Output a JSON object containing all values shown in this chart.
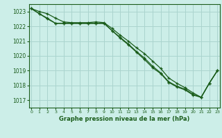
{
  "title": "Graphe pression niveau de la mer (hPa)",
  "bg_color": "#cceee8",
  "grid_color": "#aad4ce",
  "line_color": "#1a5c1a",
  "ylim": [
    1016.5,
    1023.5
  ],
  "xlim": [
    -0.3,
    23.3
  ],
  "yticks": [
    1017,
    1018,
    1019,
    1020,
    1021,
    1022,
    1023
  ],
  "xticks": [
    0,
    1,
    2,
    3,
    4,
    5,
    6,
    7,
    8,
    9,
    10,
    11,
    12,
    13,
    14,
    15,
    16,
    17,
    18,
    19,
    20,
    21,
    22,
    23
  ],
  "line1": [
    1023.2,
    1022.85,
    1022.55,
    1022.2,
    1022.2,
    1022.2,
    1022.2,
    1022.2,
    1022.2,
    1022.2,
    1021.7,
    1021.25,
    1020.8,
    1020.3,
    1019.85,
    1019.3,
    1018.85,
    1018.25,
    1017.95,
    1017.75,
    1017.4,
    1017.2,
    1018.15,
    1019.0
  ],
  "line2": [
    1023.2,
    1023.0,
    1022.85,
    1022.55,
    1022.3,
    1022.25,
    1022.25,
    1022.25,
    1022.3,
    1022.25,
    1021.85,
    1021.4,
    1021.0,
    1020.55,
    1020.15,
    1019.65,
    1019.15,
    1018.5,
    1018.15,
    1017.85,
    1017.5,
    1017.2,
    1018.15,
    1019.0
  ],
  "line3": [
    1023.2,
    1022.85,
    1022.5,
    1022.2,
    1022.2,
    1022.2,
    1022.2,
    1022.2,
    1022.2,
    1022.2,
    1021.7,
    1021.2,
    1020.75,
    1020.25,
    1019.75,
    1019.2,
    1018.8,
    1018.2,
    1017.9,
    1017.7,
    1017.35,
    1017.2,
    1018.15,
    1019.0
  ],
  "figwidth": 3.2,
  "figheight": 2.0,
  "dpi": 100
}
